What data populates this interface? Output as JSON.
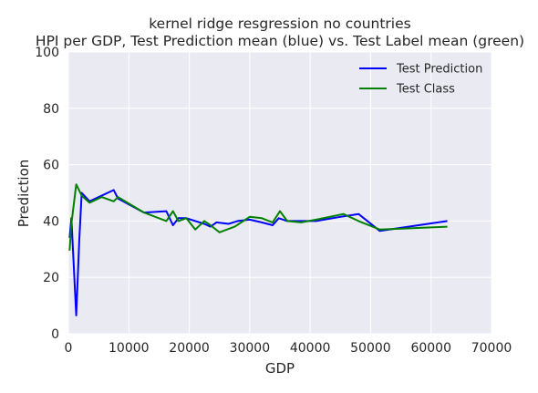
{
  "chart_data": {
    "type": "line",
    "title_line1": "kernel ridge resgression no countries",
    "title_line2": "HPI per GDP, Test Prediction mean (blue) vs. Test Label mean (green)",
    "xlabel": "GDP",
    "ylabel": "Prediction",
    "xlim": [
      0,
      70000
    ],
    "ylim": [
      0,
      100
    ],
    "xticks": [
      0,
      10000,
      20000,
      30000,
      40000,
      50000,
      60000,
      70000
    ],
    "yticks": [
      0,
      20,
      40,
      60,
      80,
      100
    ],
    "grid": true,
    "legend_position": "top-right",
    "series": [
      {
        "name": "Test Prediction",
        "color": "#0000ff",
        "x": [
          200,
          500,
          1300,
          1800,
          2200,
          3500,
          7500,
          8200,
          12500,
          16200,
          17300,
          18200,
          19500,
          22500,
          23500,
          24500,
          26500,
          28000,
          30000,
          32000,
          33800,
          34800,
          36200,
          38000,
          41000,
          45000,
          48000,
          51500,
          62700
        ],
        "y": [
          34,
          41,
          6.5,
          33,
          50,
          47,
          51,
          48,
          43,
          43.5,
          38.5,
          41,
          41,
          39,
          38,
          39.5,
          39,
          40,
          40.5,
          39.5,
          38.5,
          41,
          40,
          40,
          40,
          41.5,
          42.5,
          36.5,
          40
        ]
      },
      {
        "name": "Test Class",
        "color": "#008000",
        "x": [
          200,
          500,
          1300,
          2200,
          3500,
          5500,
          7500,
          8200,
          12500,
          16200,
          17300,
          18200,
          19500,
          21000,
          22500,
          23500,
          25000,
          27500,
          30000,
          32000,
          33800,
          35000,
          36200,
          38500,
          41000,
          45500,
          48000,
          51500,
          62700
        ],
        "y": [
          29.5,
          39,
          53,
          49,
          46.5,
          48.5,
          47,
          48.5,
          43,
          40,
          43.5,
          40,
          41,
          37,
          40,
          38.5,
          36,
          38,
          41.5,
          41,
          39.5,
          43.5,
          40,
          39.5,
          40.5,
          42.5,
          40,
          37,
          38
        ]
      }
    ]
  }
}
